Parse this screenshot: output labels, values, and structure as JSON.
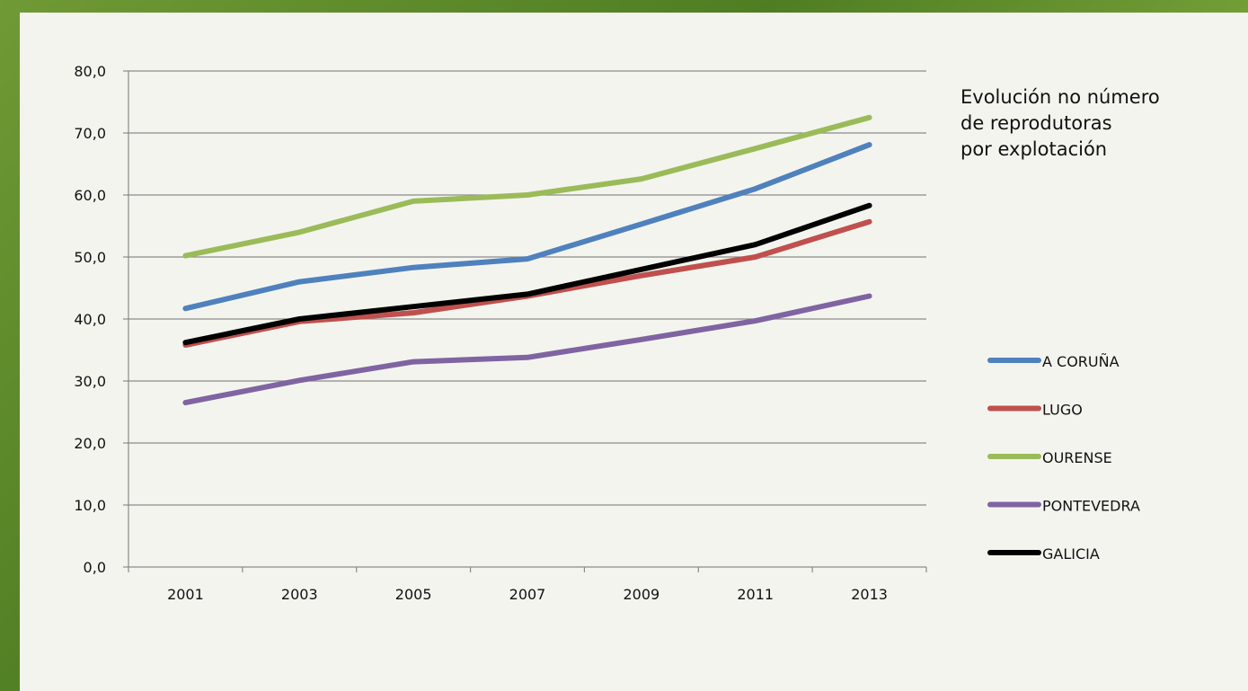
{
  "chart_data": {
    "type": "line",
    "title_lines": [
      "Evolución no número",
      "de reprodutoras",
      "por explotación"
    ],
    "categories": [
      "2001",
      "2003",
      "2005",
      "2007",
      "2009",
      "2011",
      "2013"
    ],
    "ylim": [
      0,
      80
    ],
    "yticks": [
      "0,0",
      "10,0",
      "20,0",
      "30,0",
      "40,0",
      "50,0",
      "60,0",
      "70,0",
      "80,0"
    ],
    "grid": true,
    "legend_position": "right",
    "series": [
      {
        "name": "A CORUÑA",
        "color": "#4f81bd",
        "values": [
          41.7,
          46.0,
          48.3,
          49.7,
          55.3,
          61.0,
          68.1
        ]
      },
      {
        "name": "LUGO",
        "color": "#c0504d",
        "values": [
          35.8,
          39.6,
          41.0,
          43.7,
          47.0,
          50.0,
          55.7
        ]
      },
      {
        "name": "OURENSE",
        "color": "#9bbb59",
        "values": [
          50.2,
          54.0,
          59.0,
          60.0,
          62.6,
          67.5,
          72.5
        ]
      },
      {
        "name": "PONTEVEDRA",
        "color": "#8064a2",
        "values": [
          26.5,
          30.1,
          33.1,
          33.8,
          36.7,
          39.7,
          43.7
        ]
      },
      {
        "name": "GALICIA",
        "color": "#000000",
        "values": [
          36.2,
          40.0,
          42.0,
          44.0,
          48.0,
          52.0,
          58.3
        ]
      }
    ]
  }
}
